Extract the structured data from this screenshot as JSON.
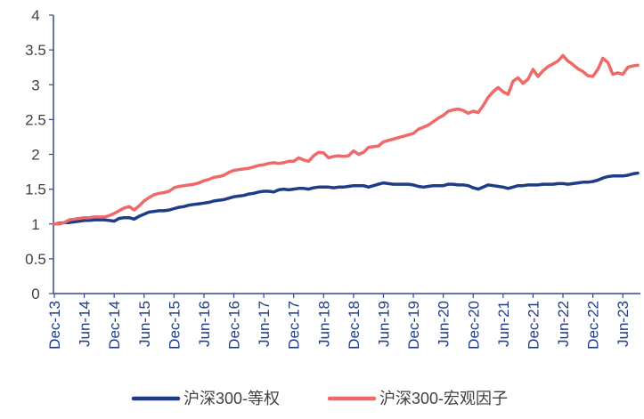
{
  "chart_data": {
    "type": "line",
    "ylim": [
      0,
      4
    ],
    "yticks": [
      0,
      0.5,
      1,
      1.5,
      2,
      2.5,
      3,
      3.5,
      4
    ],
    "grid": false,
    "legend": "bottom",
    "x": [
      "Dec-13",
      "Jan-14",
      "Feb-14",
      "Mar-14",
      "Apr-14",
      "May-14",
      "Jun-14",
      "Jul-14",
      "Aug-14",
      "Sep-14",
      "Oct-14",
      "Nov-14",
      "Dec-14",
      "Jan-15",
      "Feb-15",
      "Mar-15",
      "Apr-15",
      "May-15",
      "Jun-15",
      "Jul-15",
      "Aug-15",
      "Sep-15",
      "Oct-15",
      "Nov-15",
      "Dec-15",
      "Jan-16",
      "Feb-16",
      "Mar-16",
      "Apr-16",
      "May-16",
      "Jun-16",
      "Jul-16",
      "Aug-16",
      "Sep-16",
      "Oct-16",
      "Nov-16",
      "Dec-16",
      "Jan-17",
      "Feb-17",
      "Mar-17",
      "Apr-17",
      "May-17",
      "Jun-17",
      "Jul-17",
      "Aug-17",
      "Sep-17",
      "Oct-17",
      "Nov-17",
      "Dec-17",
      "Jan-18",
      "Feb-18",
      "Mar-18",
      "Apr-18",
      "May-18",
      "Jun-18",
      "Jul-18",
      "Aug-18",
      "Sep-18",
      "Oct-18",
      "Nov-18",
      "Dec-18",
      "Jan-19",
      "Feb-19",
      "Mar-19",
      "Apr-19",
      "May-19",
      "Jun-19",
      "Jul-19",
      "Aug-19",
      "Sep-19",
      "Oct-19",
      "Nov-19",
      "Dec-19",
      "Jan-20",
      "Feb-20",
      "Mar-20",
      "Apr-20",
      "May-20",
      "Jun-20",
      "Jul-20",
      "Aug-20",
      "Sep-20",
      "Oct-20",
      "Nov-20",
      "Dec-20",
      "Jan-21",
      "Feb-21",
      "Mar-21",
      "Apr-21",
      "May-21",
      "Jun-21",
      "Jul-21",
      "Aug-21",
      "Sep-21",
      "Oct-21",
      "Nov-21",
      "Dec-21",
      "Jan-22",
      "Feb-22",
      "Mar-22",
      "Apr-22",
      "May-22",
      "Jun-22",
      "Jul-22",
      "Aug-22",
      "Sep-22",
      "Oct-22",
      "Nov-22",
      "Dec-22",
      "Jan-23",
      "Feb-23",
      "Mar-23",
      "Apr-23",
      "May-23",
      "Jun-23",
      "Jul-23",
      "Aug-23",
      "Sep-23"
    ],
    "series": [
      {
        "name": "沪深300-等权",
        "color": "#1f3c88",
        "values": [
          1.0,
          1.01,
          1.02,
          1.02,
          1.03,
          1.04,
          1.05,
          1.05,
          1.06,
          1.06,
          1.06,
          1.05,
          1.04,
          1.08,
          1.09,
          1.09,
          1.07,
          1.11,
          1.14,
          1.17,
          1.18,
          1.19,
          1.19,
          1.2,
          1.22,
          1.24,
          1.25,
          1.27,
          1.28,
          1.29,
          1.3,
          1.31,
          1.33,
          1.34,
          1.35,
          1.37,
          1.39,
          1.4,
          1.41,
          1.43,
          1.44,
          1.46,
          1.47,
          1.47,
          1.46,
          1.49,
          1.5,
          1.49,
          1.5,
          1.51,
          1.51,
          1.5,
          1.52,
          1.53,
          1.53,
          1.53,
          1.52,
          1.53,
          1.53,
          1.54,
          1.55,
          1.55,
          1.55,
          1.53,
          1.55,
          1.57,
          1.59,
          1.58,
          1.57,
          1.57,
          1.57,
          1.57,
          1.56,
          1.54,
          1.53,
          1.54,
          1.55,
          1.55,
          1.55,
          1.57,
          1.57,
          1.56,
          1.56,
          1.55,
          1.52,
          1.5,
          1.53,
          1.56,
          1.55,
          1.54,
          1.53,
          1.51,
          1.53,
          1.55,
          1.55,
          1.56,
          1.56,
          1.56,
          1.57,
          1.57,
          1.57,
          1.58,
          1.58,
          1.57,
          1.58,
          1.59,
          1.6,
          1.6,
          1.61,
          1.63,
          1.66,
          1.68,
          1.69,
          1.69,
          1.69,
          1.7,
          1.72,
          1.73
        ]
      },
      {
        "name": "沪深300-宏观因子",
        "color": "#ee6a6a",
        "values": [
          1.0,
          1.0,
          1.02,
          1.06,
          1.07,
          1.08,
          1.09,
          1.09,
          1.1,
          1.1,
          1.1,
          1.12,
          1.15,
          1.19,
          1.23,
          1.25,
          1.2,
          1.26,
          1.33,
          1.38,
          1.42,
          1.44,
          1.45,
          1.47,
          1.52,
          1.54,
          1.55,
          1.56,
          1.57,
          1.59,
          1.62,
          1.64,
          1.67,
          1.68,
          1.7,
          1.74,
          1.77,
          1.78,
          1.79,
          1.8,
          1.82,
          1.84,
          1.85,
          1.87,
          1.88,
          1.87,
          1.88,
          1.9,
          1.9,
          1.95,
          1.92,
          1.9,
          1.98,
          2.03,
          2.02,
          1.95,
          1.97,
          1.98,
          1.97,
          1.98,
          2.05,
          2.0,
          2.03,
          2.1,
          2.11,
          2.12,
          2.18,
          2.2,
          2.22,
          2.24,
          2.26,
          2.28,
          2.3,
          2.36,
          2.39,
          2.42,
          2.47,
          2.52,
          2.56,
          2.62,
          2.64,
          2.65,
          2.63,
          2.59,
          2.62,
          2.6,
          2.7,
          2.82,
          2.9,
          2.96,
          2.9,
          2.86,
          3.05,
          3.1,
          3.02,
          3.08,
          3.22,
          3.12,
          3.2,
          3.26,
          3.3,
          3.34,
          3.42,
          3.34,
          3.29,
          3.23,
          3.19,
          3.13,
          3.12,
          3.22,
          3.38,
          3.32,
          3.15,
          3.17,
          3.15,
          3.25,
          3.27,
          3.28
        ]
      }
    ]
  }
}
